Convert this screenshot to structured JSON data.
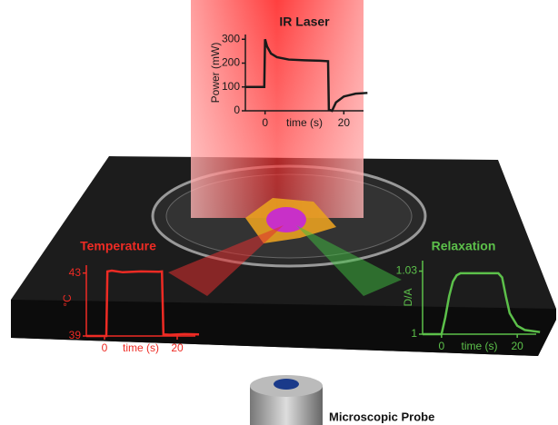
{
  "chart_data": [
    {
      "type": "line",
      "title": "IR Laser",
      "ylabel": "Power (mW)",
      "xlabel": "time (s)",
      "color": "#1a1a1a",
      "xlim": [
        -5,
        25
      ],
      "ylim": [
        0,
        320
      ],
      "xticks": [
        0,
        20
      ],
      "yticks": [
        0,
        100,
        200,
        300
      ],
      "x": [
        -5,
        -0.2,
        0,
        0.5,
        1.5,
        3,
        6,
        10,
        14,
        16,
        16.2,
        17,
        18,
        20,
        23,
        26
      ],
      "values": [
        100,
        100,
        300,
        270,
        240,
        225,
        215,
        212,
        210,
        208,
        5,
        0,
        35,
        60,
        72,
        75
      ]
    },
    {
      "type": "line",
      "title": "Temperature",
      "ylabel": "°C",
      "xlabel": "time (s)",
      "color": "#ee2b24",
      "xlim": [
        -5,
        25
      ],
      "ylim": [
        39,
        43.5
      ],
      "xticks": [
        0,
        20
      ],
      "yticks": [
        39,
        43
      ],
      "x": [
        -5,
        0.5,
        0.8,
        2,
        5,
        10,
        15,
        15.8,
        16.2,
        18,
        22,
        26
      ],
      "values": [
        39,
        39,
        43.1,
        43.15,
        43.05,
        43.1,
        43.08,
        43.1,
        39.1,
        39.08,
        39.12,
        39.1
      ]
    },
    {
      "type": "line",
      "title": "Relaxation",
      "ylabel": "D/A",
      "xlabel": "time (s)",
      "color": "#5cc04a",
      "xlim": [
        -5,
        25
      ],
      "ylim": [
        1,
        1.035
      ],
      "xticks": [
        0,
        20
      ],
      "yticks": [
        1,
        1.03
      ],
      "x": [
        -5,
        0,
        1,
        2,
        3,
        4,
        5,
        10,
        15,
        16,
        17,
        18,
        20,
        22,
        26
      ],
      "values": [
        1,
        1,
        1.008,
        1.018,
        1.025,
        1.028,
        1.029,
        1.029,
        1.029,
        1.027,
        1.018,
        1.01,
        1.004,
        1.002,
        1.001
      ]
    }
  ],
  "labels": {
    "probe": "Microscopic Probe"
  }
}
